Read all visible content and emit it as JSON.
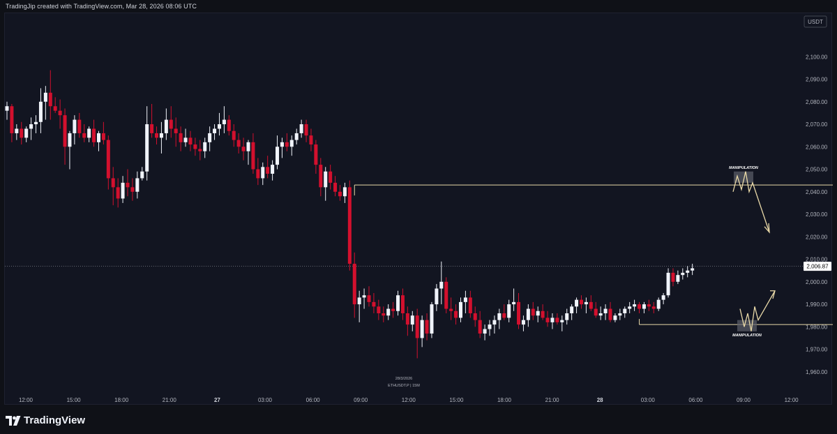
{
  "header": {
    "text": "TradingJip created with TradingView.com, Mar 28, 2026 08:06 UTC"
  },
  "footer": {
    "brand": "TradingView"
  },
  "colors": {
    "background": "#121521",
    "up": "#f0f3fa",
    "down": "#d3102e",
    "annotation": "#e9d9a8",
    "axis_text": "#b2b5be"
  },
  "chart_data": {
    "type": "candlestick",
    "currency": "USDT",
    "symbol_label": "ETHUSDT.P | 15M",
    "date_label": "28/3/2026",
    "last_price_label": "2,006.87",
    "last_price": 2006.87,
    "ylim": [
      1955,
      2110
    ],
    "y_ticks": [
      {
        "value": 2100,
        "label": "2,100.00"
      },
      {
        "value": 2090,
        "label": "2,090.00"
      },
      {
        "value": 2080,
        "label": "2,080.00"
      },
      {
        "value": 2070,
        "label": "2,070.00"
      },
      {
        "value": 2060,
        "label": "2,060.00"
      },
      {
        "value": 2050,
        "label": "2,050.00"
      },
      {
        "value": 2040,
        "label": "2,040.00"
      },
      {
        "value": 2030,
        "label": "2,030.00"
      },
      {
        "value": 2020,
        "label": "2,020.00"
      },
      {
        "value": 2010,
        "label": "2,010.00"
      },
      {
        "value": 2000,
        "label": "2,000.00"
      },
      {
        "value": 1990,
        "label": "1,990.00"
      },
      {
        "value": 1980,
        "label": "1,980.00"
      },
      {
        "value": 1970,
        "label": "1,970.00"
      },
      {
        "value": 1960,
        "label": "1,960.00"
      }
    ],
    "x_ticks": [
      {
        "label": "12:00",
        "bold": false
      },
      {
        "label": "15:00",
        "bold": false
      },
      {
        "label": "18:00",
        "bold": false
      },
      {
        "label": "21:00",
        "bold": false
      },
      {
        "label": "27",
        "bold": true
      },
      {
        "label": "03:00",
        "bold": false
      },
      {
        "label": "06:00",
        "bold": false
      },
      {
        "label": "09:00",
        "bold": false
      },
      {
        "label": "12:00",
        "bold": false
      },
      {
        "label": "15:00",
        "bold": false
      },
      {
        "label": "18:00",
        "bold": false
      },
      {
        "label": "21:00",
        "bold": false
      },
      {
        "label": "28",
        "bold": true
      },
      {
        "label": "03:00",
        "bold": false
      },
      {
        "label": "06:00",
        "bold": false
      },
      {
        "label": "09:00",
        "bold": false
      },
      {
        "label": "12:00",
        "bold": false
      }
    ],
    "candles": [
      [
        2076,
        2080,
        2072,
        2078
      ],
      [
        2078,
        2079,
        2062,
        2066
      ],
      [
        2066,
        2070,
        2063,
        2068
      ],
      [
        2068,
        2071,
        2061,
        2064
      ],
      [
        2064,
        2069,
        2062,
        2068
      ],
      [
        2068,
        2073,
        2063,
        2070
      ],
      [
        2070,
        2074,
        2066,
        2071
      ],
      [
        2071,
        2086,
        2066,
        2080
      ],
      [
        2080,
        2087,
        2072,
        2084
      ],
      [
        2084,
        2094,
        2072,
        2078
      ],
      [
        2078,
        2082,
        2075,
        2076
      ],
      [
        2076,
        2081,
        2068,
        2074
      ],
      [
        2074,
        2077,
        2052,
        2060
      ],
      [
        2060,
        2067,
        2050,
        2066
      ],
      [
        2066,
        2074,
        2061,
        2072
      ],
      [
        2072,
        2075,
        2064,
        2066
      ],
      [
        2066,
        2070,
        2062,
        2064
      ],
      [
        2064,
        2069,
        2062,
        2068
      ],
      [
        2068,
        2072,
        2060,
        2062
      ],
      [
        2062,
        2067,
        2058,
        2066
      ],
      [
        2066,
        2071,
        2061,
        2063
      ],
      [
        2063,
        2065,
        2041,
        2046
      ],
      [
        2046,
        2051,
        2034,
        2042
      ],
      [
        2042,
        2046,
        2033,
        2037
      ],
      [
        2037,
        2047,
        2035,
        2044
      ],
      [
        2044,
        2050,
        2038,
        2042
      ],
      [
        2042,
        2046,
        2036,
        2040
      ],
      [
        2040,
        2049,
        2037,
        2046
      ],
      [
        2046,
        2051,
        2045,
        2049
      ],
      [
        2049,
        2078,
        2045,
        2070
      ],
      [
        2070,
        2079,
        2064,
        2066
      ],
      [
        2066,
        2069,
        2061,
        2064
      ],
      [
        2064,
        2071,
        2057,
        2066
      ],
      [
        2066,
        2077,
        2063,
        2072
      ],
      [
        2072,
        2078,
        2064,
        2068
      ],
      [
        2068,
        2073,
        2060,
        2066
      ],
      [
        2066,
        2069,
        2058,
        2062
      ],
      [
        2062,
        2068,
        2060,
        2064
      ],
      [
        2064,
        2067,
        2058,
        2061
      ],
      [
        2061,
        2064,
        2056,
        2059
      ],
      [
        2059,
        2063,
        2054,
        2058
      ],
      [
        2058,
        2064,
        2055,
        2062
      ],
      [
        2062,
        2069,
        2058,
        2066
      ],
      [
        2066,
        2070,
        2063,
        2068
      ],
      [
        2068,
        2075,
        2065,
        2070
      ],
      [
        2070,
        2078,
        2066,
        2072
      ],
      [
        2072,
        2074,
        2065,
        2067
      ],
      [
        2067,
        2070,
        2060,
        2063
      ],
      [
        2063,
        2066,
        2057,
        2060
      ],
      [
        2060,
        2064,
        2054,
        2058
      ],
      [
        2058,
        2063,
        2052,
        2062
      ],
      [
        2062,
        2066,
        2048,
        2050
      ],
      [
        2050,
        2055,
        2043,
        2046
      ],
      [
        2046,
        2053,
        2043,
        2051
      ],
      [
        2051,
        2056,
        2046,
        2048
      ],
      [
        2048,
        2054,
        2045,
        2052
      ],
      [
        2052,
        2065,
        2050,
        2060
      ],
      [
        2060,
        2064,
        2055,
        2062
      ],
      [
        2062,
        2066,
        2058,
        2060
      ],
      [
        2060,
        2065,
        2056,
        2063
      ],
      [
        2063,
        2068,
        2061,
        2066
      ],
      [
        2066,
        2072,
        2064,
        2070
      ],
      [
        2070,
        2072,
        2062,
        2065
      ],
      [
        2065,
        2068,
        2058,
        2061
      ],
      [
        2061,
        2063,
        2048,
        2052
      ],
      [
        2052,
        2055,
        2038,
        2042
      ],
      [
        2042,
        2051,
        2036,
        2049
      ],
      [
        2049,
        2052,
        2041,
        2044
      ],
      [
        2044,
        2047,
        2038,
        2040
      ],
      [
        2040,
        2043,
        2036,
        2038
      ],
      [
        2038,
        2044,
        2035,
        2042
      ],
      [
        2042,
        2045,
        2005,
        2008
      ],
      [
        2008,
        2013,
        1984,
        1990
      ],
      [
        1990,
        1996,
        1982,
        1993
      ],
      [
        1993,
        1997,
        1988,
        1994
      ],
      [
        1994,
        1998,
        1989,
        1991
      ],
      [
        1991,
        1995,
        1986,
        1989
      ],
      [
        1989,
        1992,
        1983,
        1986
      ],
      [
        1986,
        1989,
        1982,
        1985
      ],
      [
        1985,
        1990,
        1983,
        1988
      ],
      [
        1988,
        1991,
        1984,
        1987
      ],
      [
        1987,
        1996,
        1985,
        1994
      ],
      [
        1994,
        1997,
        1983,
        1986
      ],
      [
        1986,
        1989,
        1976,
        1981
      ],
      [
        1981,
        1987,
        1978,
        1985
      ],
      [
        1985,
        1988,
        1966,
        1975
      ],
      [
        1975,
        1985,
        1971,
        1983
      ],
      [
        1983,
        1986,
        1974,
        1977
      ],
      [
        1977,
        1991,
        1975,
        1990
      ],
      [
        1990,
        1999,
        1987,
        1997
      ],
      [
        1997,
        2009,
        1990,
        2000
      ],
      [
        2000,
        2002,
        1986,
        1988
      ],
      [
        1988,
        1993,
        1983,
        1987
      ],
      [
        1987,
        1990,
        1981,
        1984
      ],
      [
        1984,
        1993,
        1982,
        1991
      ],
      [
        1991,
        1996,
        1986,
        1993
      ],
      [
        1993,
        1996,
        1984,
        1986
      ],
      [
        1986,
        1989,
        1980,
        1983
      ],
      [
        1983,
        1987,
        1975,
        1977
      ],
      [
        1977,
        1981,
        1974,
        1979
      ],
      [
        1979,
        1983,
        1976,
        1981
      ],
      [
        1981,
        1985,
        1977,
        1983
      ],
      [
        1983,
        1988,
        1979,
        1986
      ],
      [
        1986,
        1990,
        1983,
        1984
      ],
      [
        1984,
        1992,
        1982,
        1990
      ],
      [
        1990,
        1997,
        1987,
        1991
      ],
      [
        1991,
        1995,
        1979,
        1981
      ],
      [
        1981,
        1985,
        1978,
        1983
      ],
      [
        1983,
        1990,
        1980,
        1988
      ],
      [
        1988,
        1991,
        1983,
        1985
      ],
      [
        1985,
        1989,
        1982,
        1987
      ],
      [
        1987,
        1990,
        1983,
        1984
      ],
      [
        1984,
        1987,
        1980,
        1982
      ],
      [
        1982,
        1986,
        1979,
        1984
      ],
      [
        1984,
        1986,
        1981,
        1982
      ],
      [
        1982,
        1985,
        1978,
        1983
      ],
      [
        1983,
        1988,
        1981,
        1986
      ],
      [
        1986,
        1990,
        1983,
        1989
      ],
      [
        1989,
        1993,
        1986,
        1992
      ],
      [
        1992,
        1994,
        1988,
        1990
      ],
      [
        1990,
        1993,
        1986,
        1991
      ],
      [
        1991,
        1994,
        1987,
        1988
      ],
      [
        1988,
        1991,
        1984,
        1985
      ],
      [
        1985,
        1989,
        1983,
        1986
      ],
      [
        1986,
        1990,
        1983,
        1988
      ],
      [
        1988,
        1991,
        1982,
        1983
      ],
      [
        1983,
        1986,
        1982,
        1985
      ],
      [
        1985,
        1988,
        1983,
        1986
      ],
      [
        1986,
        1989,
        1984,
        1988
      ],
      [
        1988,
        1991,
        1986,
        1989
      ],
      [
        1989,
        1992,
        1987,
        1990
      ],
      [
        1990,
        1991,
        1986,
        1988
      ],
      [
        1988,
        1991,
        1986,
        1990
      ],
      [
        1990,
        1992,
        1987,
        1989
      ],
      [
        1989,
        1991,
        1986,
        1988
      ],
      [
        1988,
        1993,
        1987,
        1992
      ],
      [
        1992,
        1995,
        1990,
        1994
      ],
      [
        1994,
        2006,
        1993,
        2004
      ],
      [
        2004,
        2006,
        1998,
        2000
      ],
      [
        2000,
        2005,
        1999,
        2003
      ],
      [
        2003,
        2006,
        2001,
        2004
      ],
      [
        2004,
        2007,
        2002,
        2005
      ],
      [
        2005,
        2008,
        2003,
        2006
      ]
    ],
    "levels": [
      {
        "name": "manipulation-high",
        "value": 2043,
        "x_start_candle": 72,
        "x_end_candle": 172
      },
      {
        "name": "manipulation-low",
        "value": 1981,
        "x_start_candle": 131,
        "x_end_candle": 172
      }
    ],
    "annotations": [
      {
        "text": "MANIPULATION",
        "anchor": "upper"
      },
      {
        "text": "MANIPULATION",
        "anchor": "lower"
      }
    ]
  }
}
